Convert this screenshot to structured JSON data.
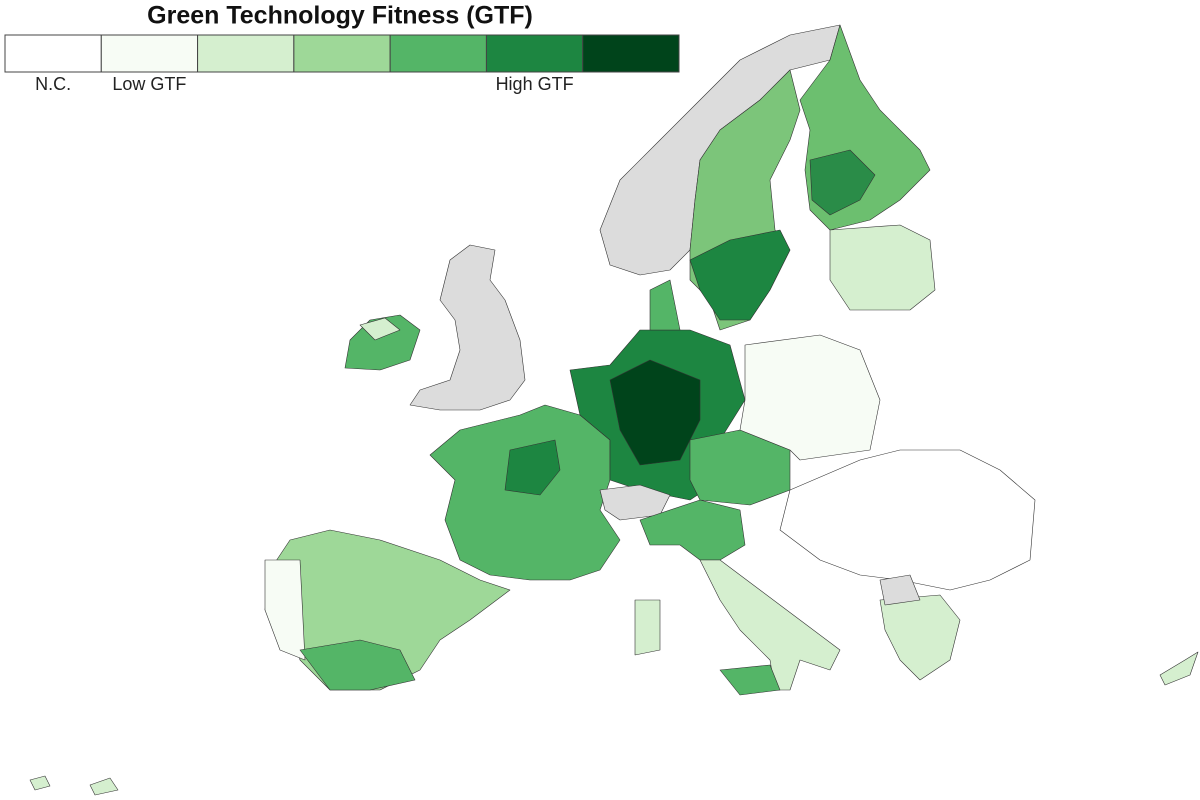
{
  "title": "Green Technology Fitness (GTF)",
  "legend": {
    "items": [
      {
        "color": "#ffffff",
        "label": "N.C."
      },
      {
        "color": "#f7fcf5",
        "label": "Low GTF"
      },
      {
        "color": "#d5efcf"
      },
      {
        "color": "#9ed898"
      },
      {
        "color": "#54b567"
      },
      {
        "color": "#1d8641",
        "label": "High GTF"
      },
      {
        "color": "#00441b"
      }
    ]
  }
}
